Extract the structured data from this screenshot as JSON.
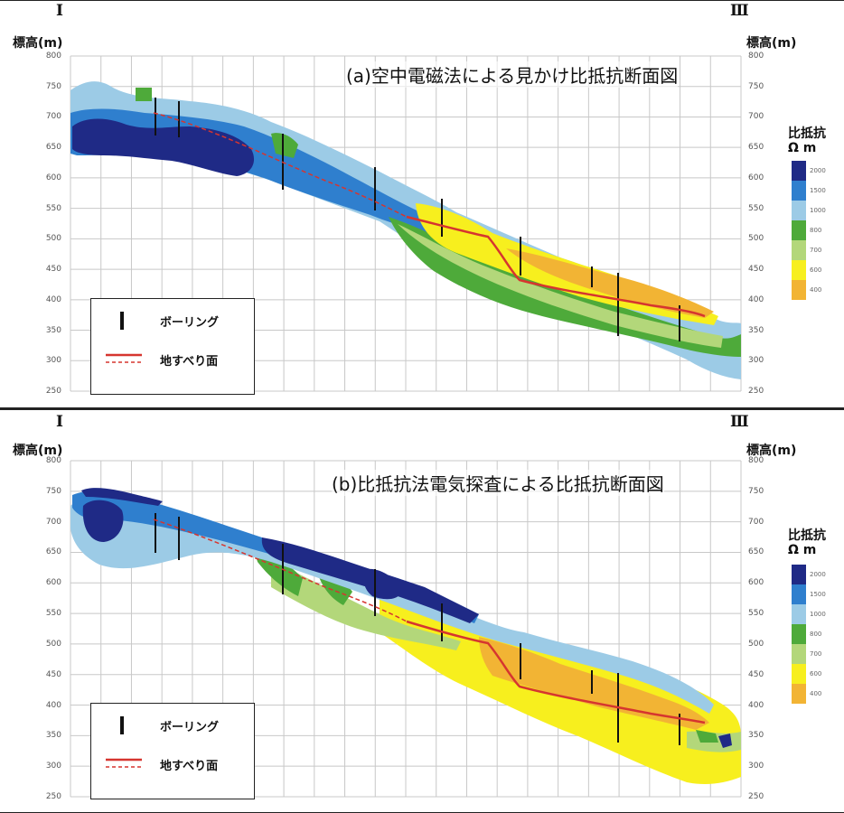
{
  "colors": {
    "c2000": "#1f2a86",
    "c1500": "#2f7fce",
    "c1000": "#9ccbe6",
    "c800": "#4eaa3a",
    "c700": "#b3d77a",
    "c600": "#f7ef1e",
    "c400": "#f2b434",
    "slip": "#d6352f",
    "grid": "#c8c8c8"
  },
  "panel_a": {
    "marker_left": "Ⅰ",
    "marker_right": "Ⅲ",
    "axis_left": "標高(m)",
    "axis_right": "標高(m)",
    "title": "(a)空中電磁法による見かけ比抵抗断面図",
    "scale_title": "比抵抗",
    "scale_unit": "Ω m"
  },
  "panel_b": {
    "marker_left": "Ⅰ",
    "marker_right": "Ⅲ",
    "axis_left": "標高(m)",
    "axis_right": "標高(m)",
    "title": "(b)比抵抗法電気探査による比抵抗断面図",
    "scale_title": "比抵抗",
    "scale_unit": "Ω m"
  },
  "legend": {
    "boring": "ボーリング",
    "slip": "地すべり面"
  },
  "ticks": [
    "800",
    "750",
    "700",
    "650",
    "600",
    "550",
    "500",
    "450",
    "400",
    "350",
    "300",
    "250"
  ],
  "scale_labels": [
    "2000",
    "1500",
    "1000",
    "800",
    "700",
    "600",
    "400"
  ]
}
